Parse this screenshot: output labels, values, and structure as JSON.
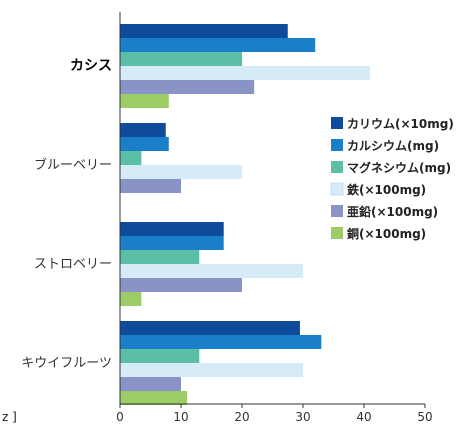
{
  "chart_data": {
    "type": "bar",
    "orientation": "horizontal",
    "categories": [
      "カシス",
      "ブルーベリー",
      "ストロベリー",
      "キウイフルーツ"
    ],
    "highlighted_category": "カシス",
    "xlim": [
      0,
      50
    ],
    "xticks": [
      0,
      10,
      20,
      30,
      40,
      50
    ],
    "grid": false,
    "legend_position": "right",
    "series": [
      {
        "name": "カリウム(×10mg)",
        "color": "#0e4b9a",
        "values": [
          27.5,
          7.5,
          17,
          29.5
        ]
      },
      {
        "name": "カルシウム(mg)",
        "color": "#1a7fc8",
        "values": [
          32,
          8,
          17,
          33
        ]
      },
      {
        "name": "マグネシウム(mg)",
        "color": "#5bbfa5",
        "values": [
          20,
          3.5,
          13,
          13
        ]
      },
      {
        "name": "鉄(×100mg)",
        "color": "#d6ebf8",
        "values": [
          41,
          20,
          30,
          30
        ]
      },
      {
        "name": "亜鉛(×100mg)",
        "color": "#8a93c7",
        "values": [
          22,
          10,
          20,
          10
        ]
      },
      {
        "name": "銅(×100mg)",
        "color": "#9ccc66",
        "values": [
          8,
          0,
          3.5,
          11
        ]
      }
    ]
  },
  "stray_text": "z ]"
}
